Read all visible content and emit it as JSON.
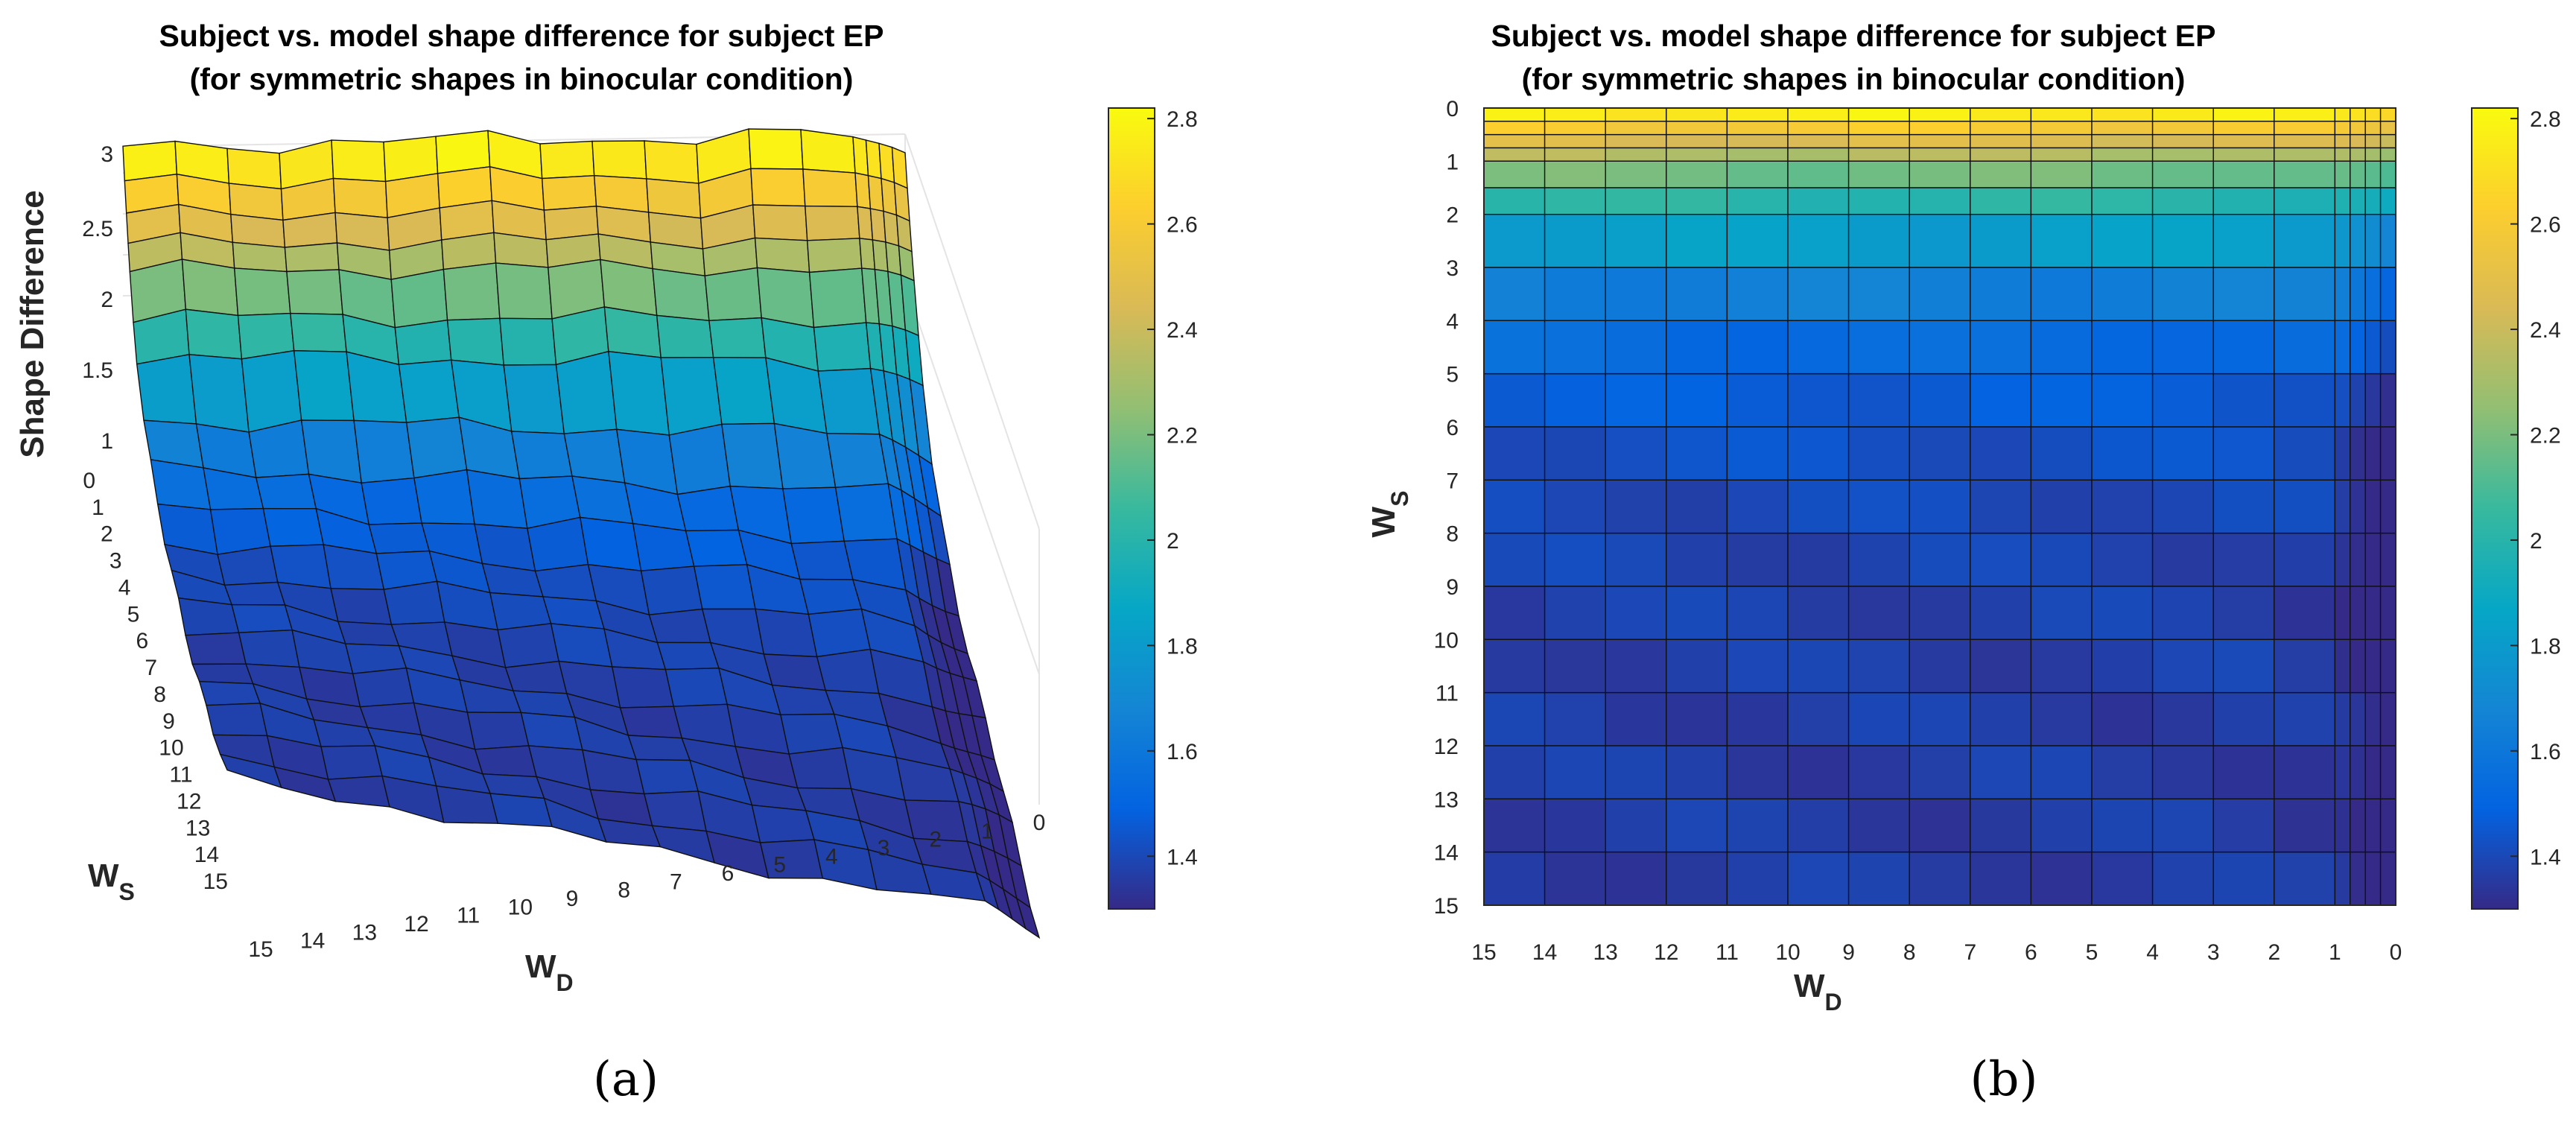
{
  "chart_data": [
    {
      "type": "surface3d",
      "panel_label": "(a)",
      "title": [
        "Subject vs. model shape difference for subject EP",
        "(for symmetric shapes in binocular condition)"
      ],
      "xlabel": {
        "main": "W",
        "sub": "D"
      },
      "ylabel": {
        "main": "W",
        "sub": "S"
      },
      "zlabel": "Shape Difference",
      "x_ticks": [
        "15",
        "14",
        "13",
        "12",
        "11",
        "10",
        "9",
        "8",
        "7",
        "6",
        "5",
        "4",
        "3",
        "2",
        "1",
        "0"
      ],
      "y_ticks": [
        "0",
        "1",
        "2",
        "3",
        "4",
        "5",
        "6",
        "7",
        "8",
        "9",
        "10",
        "11",
        "12",
        "13",
        "14",
        "15"
      ],
      "z_ticks": [
        "1",
        "1.5",
        "2",
        "2.5",
        "3"
      ],
      "zlim": [
        1,
        3
      ],
      "colorbar": {
        "range": [
          1.3,
          2.82
        ],
        "ticks": [
          "1.4",
          "1.6",
          "1.8",
          "2",
          "2.2",
          "2.4",
          "2.6",
          "2.8"
        ]
      }
    },
    {
      "type": "heatmap",
      "panel_label": "(b)",
      "title": [
        "Subject vs. model shape difference for subject EP",
        "(for symmetric shapes in binocular condition)"
      ],
      "xlabel": {
        "main": "W",
        "sub": "D"
      },
      "ylabel": {
        "main": "W",
        "sub": "S"
      },
      "x_ticks": [
        "15",
        "14",
        "13",
        "12",
        "11",
        "10",
        "9",
        "8",
        "7",
        "6",
        "5",
        "4",
        "3",
        "2",
        "1",
        "0"
      ],
      "y_ticks": [
        "0",
        "1",
        "2",
        "3",
        "4",
        "5",
        "6",
        "7",
        "8",
        "9",
        "10",
        "11",
        "12",
        "13",
        "14",
        "15"
      ],
      "colorbar": {
        "range": [
          1.3,
          2.82
        ],
        "ticks": [
          "1.4",
          "1.6",
          "1.8",
          "2",
          "2.2",
          "2.4",
          "2.6",
          "2.8"
        ]
      }
    }
  ]
}
